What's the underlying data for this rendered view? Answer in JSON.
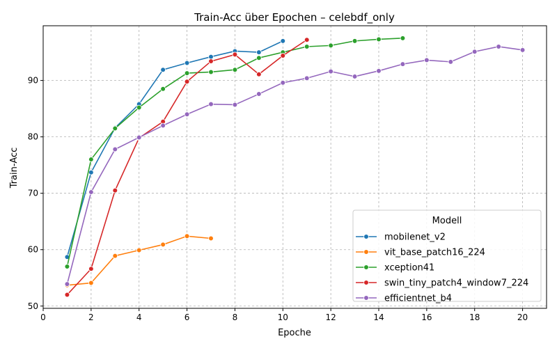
{
  "chart_data": {
    "type": "line",
    "title": "Train-Acc über Epochen – celebdf_only",
    "xlabel": "Epoche",
    "ylabel": "Train-Acc",
    "xlim": [
      0,
      21
    ],
    "ylim": [
      49.6,
      99.7
    ],
    "xticks": [
      0,
      2,
      4,
      6,
      8,
      10,
      12,
      14,
      16,
      18,
      20
    ],
    "yticks": [
      50,
      60,
      70,
      80,
      90
    ],
    "grid": true,
    "legend": {
      "title": "Modell",
      "position": "lower-right"
    },
    "series": [
      {
        "name": "mobilenet_v2",
        "color": "#1f77b4",
        "x": [
          1,
          2,
          3,
          4,
          5,
          6,
          7,
          8,
          9,
          10
        ],
        "y": [
          58.7,
          73.7,
          81.6,
          85.8,
          91.9,
          93.1,
          94.2,
          95.2,
          95.0,
          97.0
        ]
      },
      {
        "name": "vit_base_patch16_224",
        "color": "#ff7f0e",
        "x": [
          1,
          2,
          3,
          4,
          5,
          6,
          7
        ],
        "y": [
          53.7,
          54.1,
          58.9,
          59.9,
          60.9,
          62.4,
          62.0
        ]
      },
      {
        "name": "xception41",
        "color": "#2ca02c",
        "x": [
          1,
          2,
          3,
          4,
          5,
          6,
          7,
          8,
          9,
          10,
          11,
          12,
          13,
          14,
          15
        ],
        "y": [
          57.0,
          76.0,
          81.5,
          85.2,
          88.5,
          91.3,
          91.5,
          91.9,
          94.0,
          95.0,
          96.0,
          96.2,
          97.0,
          97.3,
          97.5
        ]
      },
      {
        "name": "swin_tiny_patch4_window7_224",
        "color": "#d62728",
        "x": [
          1,
          2,
          3,
          4,
          5,
          6,
          7,
          8,
          9,
          10,
          11
        ],
        "y": [
          52.0,
          56.6,
          70.5,
          79.8,
          82.7,
          89.8,
          93.4,
          94.6,
          91.1,
          94.4,
          97.2
        ]
      },
      {
        "name": "efficientnet_b4",
        "color": "#9467bd",
        "x": [
          1,
          2,
          3,
          4,
          5,
          6,
          7,
          8,
          9,
          10,
          11,
          12,
          13,
          14,
          15,
          16,
          17,
          18,
          19,
          20
        ],
        "y": [
          53.9,
          70.2,
          77.8,
          79.9,
          82.0,
          84.0,
          85.8,
          85.7,
          87.6,
          89.6,
          90.4,
          91.6,
          90.7,
          91.7,
          92.9,
          93.6,
          93.3,
          95.1,
          96.0,
          95.4
        ]
      }
    ]
  }
}
